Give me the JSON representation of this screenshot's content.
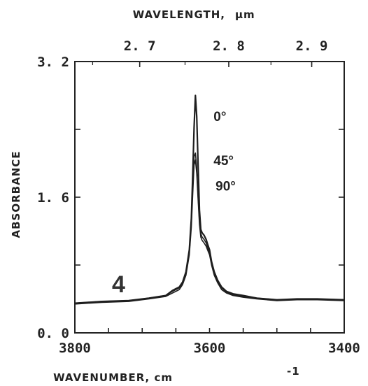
{
  "chart_data": {
    "type": "line",
    "title": "",
    "xlabel": "WAVENUMBER, cm",
    "xlabel_superscript": "-1",
    "ylabel": "ABSORBANCE",
    "top_axis_label": "WAVELENGTH,",
    "top_axis_unit": "μm",
    "xlim": [
      3800,
      3400
    ],
    "ylim": [
      0.0,
      3.2
    ],
    "x_ticks": [
      {
        "value": 3800,
        "label": "3800"
      },
      {
        "value": 3600,
        "label": "3600"
      },
      {
        "value": 3400,
        "label": "3400"
      }
    ],
    "y_ticks": [
      {
        "value": 0.0,
        "label": "0. 0"
      },
      {
        "value": 1.6,
        "label": "1. 6"
      },
      {
        "value": 3.2,
        "label": "3. 2"
      }
    ],
    "top_ticks": [
      {
        "wavelength": 2.7,
        "label": "2. 7"
      },
      {
        "wavelength": 2.8,
        "label": "2. 8"
      },
      {
        "wavelength": 2.9,
        "label": "2. 9"
      }
    ],
    "panel_label": "4",
    "annotations": [
      {
        "text": "0°",
        "x": 3594,
        "y": 2.5
      },
      {
        "text": "45°",
        "x": 3594,
        "y": 1.98
      },
      {
        "text": "90°",
        "x": 3591,
        "y": 1.68
      }
    ],
    "series": [
      {
        "name": "0°",
        "x": [
          3800,
          3760,
          3720,
          3690,
          3665,
          3655,
          3650,
          3645,
          3640,
          3635,
          3630,
          3627,
          3625,
          3623,
          3621,
          3619,
          3617,
          3615,
          3613,
          3611,
          3608,
          3605,
          3603,
          3600,
          3597,
          3593,
          3588,
          3582,
          3575,
          3565,
          3550,
          3530,
          3500,
          3470,
          3440,
          3400
        ],
        "y": [
          0.35,
          0.37,
          0.38,
          0.41,
          0.44,
          0.5,
          0.52,
          0.54,
          0.6,
          0.72,
          0.98,
          1.35,
          1.85,
          2.42,
          2.8,
          2.55,
          2.0,
          1.45,
          1.22,
          1.18,
          1.15,
          1.1,
          1.05,
          0.98,
          0.84,
          0.72,
          0.62,
          0.54,
          0.49,
          0.46,
          0.44,
          0.41,
          0.39,
          0.4,
          0.4,
          0.39
        ]
      },
      {
        "name": "45°",
        "x": [
          3800,
          3760,
          3720,
          3690,
          3665,
          3655,
          3650,
          3645,
          3640,
          3635,
          3630,
          3627,
          3625,
          3623,
          3621,
          3619,
          3617,
          3615,
          3613,
          3611,
          3608,
          3605,
          3603,
          3600,
          3597,
          3593,
          3588,
          3582,
          3575,
          3565,
          3550,
          3530,
          3500,
          3470,
          3440,
          3400
        ],
        "y": [
          0.35,
          0.37,
          0.38,
          0.41,
          0.44,
          0.49,
          0.51,
          0.53,
          0.59,
          0.7,
          0.95,
          1.3,
          1.7,
          2.08,
          2.12,
          1.95,
          1.62,
          1.32,
          1.17,
          1.13,
          1.1,
          1.06,
          1.01,
          0.95,
          0.82,
          0.7,
          0.61,
          0.53,
          0.48,
          0.45,
          0.43,
          0.41,
          0.39,
          0.39,
          0.4,
          0.39
        ]
      },
      {
        "name": "90°",
        "x": [
          3800,
          3760,
          3720,
          3690,
          3665,
          3655,
          3650,
          3645,
          3640,
          3635,
          3630,
          3627,
          3625,
          3623,
          3621,
          3619,
          3617,
          3615,
          3613,
          3611,
          3608,
          3605,
          3603,
          3600,
          3597,
          3593,
          3588,
          3582,
          3575,
          3565,
          3550,
          3530,
          3500,
          3470,
          3440,
          3400
        ],
        "y": [
          0.34,
          0.36,
          0.37,
          0.4,
          0.43,
          0.47,
          0.49,
          0.51,
          0.57,
          0.68,
          0.92,
          1.25,
          1.62,
          1.98,
          2.04,
          1.88,
          1.58,
          1.28,
          1.13,
          1.09,
          1.06,
          1.02,
          0.98,
          0.92,
          0.8,
          0.68,
          0.59,
          0.51,
          0.47,
          0.44,
          0.42,
          0.4,
          0.38,
          0.39,
          0.39,
          0.38
        ]
      }
    ]
  }
}
